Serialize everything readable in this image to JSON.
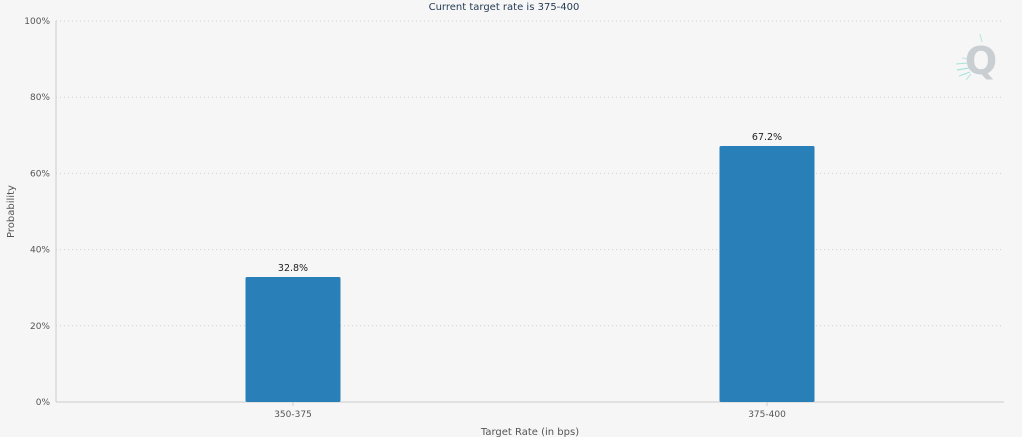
{
  "chart_data": {
    "type": "bar",
    "title": "Current target rate is 375-400",
    "xlabel": "Target Rate (in bps)",
    "ylabel": "Probability",
    "categories": [
      "350-375",
      "375-400"
    ],
    "values": [
      32.8,
      67.2
    ],
    "data_labels": [
      "32.8%",
      "67.2%"
    ],
    "ylim": [
      0,
      100
    ],
    "yticks": [
      0,
      20,
      40,
      60,
      80,
      100
    ],
    "ytick_labels": [
      "0%",
      "20%",
      "40%",
      "60%",
      "80%",
      "100%"
    ],
    "grid": true,
    "bar_color": "#2980b9",
    "legend": "none"
  },
  "watermark": {
    "icon": "q-logo-icon",
    "letter": "Q",
    "color": "#c9ced3",
    "accent": "#57cfc4"
  }
}
